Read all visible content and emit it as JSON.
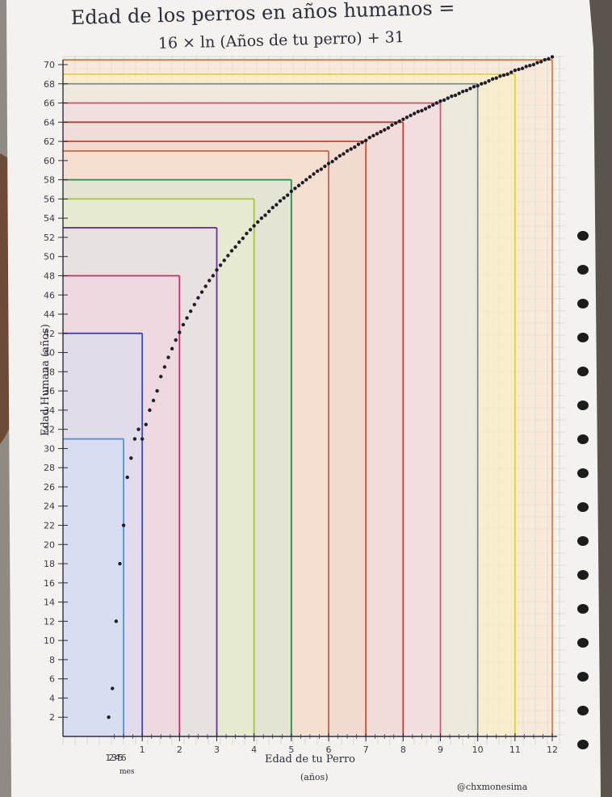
{
  "chart_data": {
    "type": "scatter",
    "title": "Edad de los perros en años humanos =",
    "subtitle": "16 × ln (Años de tu perro) + 31",
    "xlabel": "Edad de tu Perro",
    "xunit": "(años)",
    "ylabel": "Edad Humana (años)",
    "x_tick_labels": [
      "1",
      "2",
      "3",
      "4",
      "5",
      "6",
      "7",
      "8",
      "9",
      "10",
      "11",
      "12"
    ],
    "x_sub_labels": [
      "1",
      "2",
      "3",
      "4",
      "5",
      "6"
    ],
    "x_sub_unit": "mes",
    "y_tick_labels": [
      "2",
      "4",
      "6",
      "8",
      "10",
      "12",
      "14",
      "16",
      "18",
      "20",
      "22",
      "24",
      "26",
      "28",
      "30",
      "32",
      "34",
      "36",
      "38",
      "40",
      "42",
      "44",
      "46",
      "48",
      "50",
      "52",
      "54",
      "56",
      "58",
      "60",
      "62",
      "64",
      "66",
      "68",
      "70"
    ],
    "xlim": [
      0,
      12
    ],
    "ylim": [
      0,
      70
    ],
    "dots": {
      "x": [
        0.1,
        0.2,
        0.3,
        0.4,
        0.5,
        0.6,
        0.7,
        0.8,
        0.9,
        1.0,
        1.1,
        1.2,
        1.3,
        1.4,
        1.5,
        1.6,
        1.7,
        1.8,
        1.9,
        2.0,
        2.1,
        2.2,
        2.3,
        2.4,
        2.5,
        2.6,
        2.7,
        2.8,
        2.9,
        3.0,
        3.1,
        3.2,
        3.3,
        3.4,
        3.5,
        3.6,
        3.7,
        3.8,
        3.9,
        4.0,
        4.1,
        4.2,
        4.3,
        4.4,
        4.5,
        4.6,
        4.7,
        4.8,
        4.9,
        5.0,
        5.1,
        5.2,
        5.3,
        5.4,
        5.5,
        5.6,
        5.7,
        5.8,
        5.9,
        6.0,
        6.1,
        6.2,
        6.3,
        6.4,
        6.5,
        6.6,
        6.7,
        6.8,
        6.9,
        7.0,
        7.1,
        7.2,
        7.3,
        7.4,
        7.5,
        7.6,
        7.7,
        7.8,
        7.9,
        8.0,
        8.1,
        8.2,
        8.3,
        8.4,
        8.5,
        8.6,
        8.7,
        8.8,
        8.9,
        9.0,
        9.1,
        9.2,
        9.3,
        9.4,
        9.5,
        9.6,
        9.7,
        9.8,
        9.9,
        10.0,
        10.1,
        10.2,
        10.3,
        10.4,
        10.5,
        10.6,
        10.7,
        10.8,
        10.9,
        11.0,
        11.1,
        11.2,
        11.3,
        11.4,
        11.5,
        11.6,
        11.7,
        11.8,
        11.9,
        12.0
      ],
      "y": [
        2,
        5,
        12,
        18,
        22,
        27,
        29,
        31,
        32,
        31,
        32.5,
        34,
        35,
        36,
        37.5,
        38.5,
        39.5,
        40.4,
        41.3,
        42.1,
        42.9,
        43.6,
        44.3,
        45.0,
        45.7,
        46.3,
        46.9,
        47.5,
        48.0,
        48.6,
        49.1,
        49.6,
        50.1,
        50.6,
        51.0,
        51.5,
        51.9,
        52.4,
        52.8,
        53.2,
        53.6,
        54.0,
        54.3,
        54.7,
        55.1,
        55.4,
        55.8,
        56.1,
        56.4,
        56.8,
        57.1,
        57.4,
        57.7,
        58.0,
        58.3,
        58.6,
        58.9,
        59.1,
        59.4,
        59.7,
        59.9,
        60.2,
        60.5,
        60.7,
        61.0,
        61.2,
        61.4,
        61.7,
        61.9,
        62.1,
        62.4,
        62.6,
        62.8,
        63.0,
        63.2,
        63.4,
        63.7,
        63.9,
        64.1,
        64.3,
        64.5,
        64.7,
        64.9,
        65.1,
        65.2,
        65.4,
        65.6,
        65.8,
        66.0,
        66.2,
        66.3,
        66.5,
        66.7,
        66.8,
        67.0,
        67.2,
        67.3,
        67.5,
        67.7,
        67.8,
        68.0,
        68.1,
        68.3,
        68.5,
        68.6,
        68.8,
        68.9,
        69.0,
        69.2,
        69.4,
        69.5,
        69.6,
        69.8,
        69.9,
        70.0,
        70.2,
        70.3,
        70.5,
        70.6,
        70.8
      ]
    },
    "guides": [
      {
        "x": 0.5,
        "y": 31,
        "color": "#5b8fd8",
        "fill": "#cfe0f6"
      },
      {
        "x": 1.0,
        "y": 42,
        "color": "#3b49b8",
        "fill": "#d9dcf3"
      },
      {
        "x": 2.0,
        "y": 48,
        "color": "#c0306a",
        "fill": "#f3d3de"
      },
      {
        "x": 3.0,
        "y": 53,
        "color": "#6a2fa0",
        "fill": "#e7d8f0"
      },
      {
        "x": 4.0,
        "y": 56,
        "color": "#a6c23a",
        "fill": "#e9f1cc"
      },
      {
        "x": 5.0,
        "y": 58,
        "color": "#2e8a48",
        "fill": "#d3ead6"
      },
      {
        "x": 6.0,
        "y": 61,
        "color": "#c8653a",
        "fill": "#f7e0d0"
      },
      {
        "x": 7.0,
        "y": 62,
        "color": "#d84a2a",
        "fill": "#f6dacd"
      },
      {
        "x": 8.0,
        "y": 64,
        "color": "#b8402c",
        "fill": "#f3d8d2"
      },
      {
        "x": 9.0,
        "y": 66,
        "color": "#d85578",
        "fill": "#f6d9e2"
      },
      {
        "x": 10.0,
        "y": 68,
        "color": "#808a95",
        "fill": "#e3e6ea"
      },
      {
        "x": 11.0,
        "y": 69,
        "color": "#e3d23a",
        "fill": "#f8f2c2"
      },
      {
        "x": 12.0,
        "y": 70.5,
        "color": "#ea7b35",
        "fill": "#fbe1cc"
      }
    ],
    "grid": true,
    "legend": "none"
  },
  "watermark": "@chxmonesima",
  "colors": {
    "paper": "#f4f2ee",
    "grid_line": "#a9b4c8",
    "ink": "#2d2d3a",
    "dot": "#1f1f28",
    "background": "#8f8a83"
  }
}
